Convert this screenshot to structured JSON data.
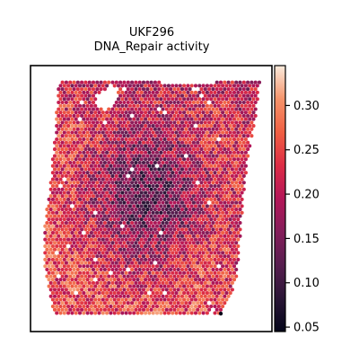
{
  "chart_data": {
    "type": "heatmap",
    "title": "UKF296",
    "subtitle": "DNA_Repair activity",
    "xlabel": "",
    "ylabel": "",
    "colorbar": {
      "vmin": 0.045,
      "vmax": 0.345,
      "ticks": [
        0.05,
        0.1,
        0.15,
        0.2,
        0.25,
        0.3
      ],
      "tick_labels": [
        "0.05",
        "0.10",
        "0.15",
        "0.20",
        "0.25",
        "0.30"
      ],
      "colormap": "rocket",
      "placement": "right"
    },
    "grid": false,
    "axis_ticks": false,
    "spot_shape": "hexagonal",
    "value_range_observed": [
      0.05,
      0.34
    ],
    "spatial_pattern": {
      "top_region_mean": 0.15,
      "center_mean": 0.11,
      "left_and_bottom_edge_mean": 0.25,
      "right_edge_mean": 0.17
    },
    "colors": {
      "low": "#03051a",
      "mid": "#cb1b4f",
      "high": "#faebdd"
    }
  }
}
